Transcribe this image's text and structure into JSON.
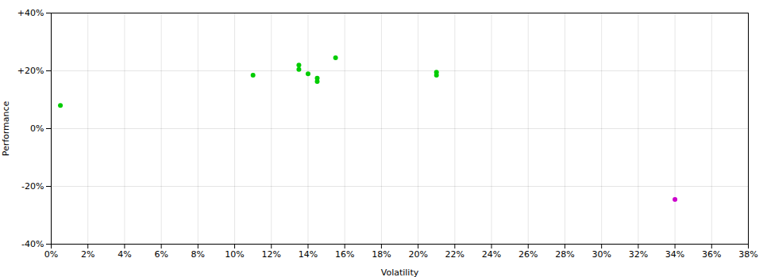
{
  "chart_data": {
    "type": "scatter",
    "xlabel": "Volatility",
    "ylabel": "Performance",
    "series": [
      {
        "color": "#00cc00",
        "x": [
          0.005,
          0.11,
          0.135,
          0.135,
          0.14,
          0.145,
          0.145,
          0.155,
          0.21,
          0.21
        ],
        "y": [
          0.08,
          0.185,
          0.22,
          0.205,
          0.19,
          0.175,
          0.163,
          0.245,
          0.195,
          0.185
        ]
      },
      {
        "color": "#cc00cc",
        "x": [
          0.34
        ],
        "y": [
          -0.245
        ]
      }
    ],
    "xlim": [
      0,
      0.38
    ],
    "ylim": [
      -0.4,
      0.4
    ],
    "xticks": [
      {
        "value": 0,
        "label": "0%"
      },
      {
        "value": 0.02,
        "label": "2%"
      },
      {
        "value": 0.04,
        "label": "4%"
      },
      {
        "value": 0.06,
        "label": "6%"
      },
      {
        "value": 0.08,
        "label": "8%"
      },
      {
        "value": 0.1,
        "label": "10%"
      },
      {
        "value": 0.12,
        "label": "12%"
      },
      {
        "value": 0.14,
        "label": "14%"
      },
      {
        "value": 0.16,
        "label": "16%"
      },
      {
        "value": 0.18,
        "label": "18%"
      },
      {
        "value": 0.2,
        "label": "20%"
      },
      {
        "value": 0.22,
        "label": "22%"
      },
      {
        "value": 0.24,
        "label": "24%"
      },
      {
        "value": 0.26,
        "label": "26%"
      },
      {
        "value": 0.28,
        "label": "28%"
      },
      {
        "value": 0.3,
        "label": "30%"
      },
      {
        "value": 0.32,
        "label": "32%"
      },
      {
        "value": 0.34,
        "label": "34%"
      },
      {
        "value": 0.36,
        "label": "36%"
      },
      {
        "value": 0.38,
        "label": "38%"
      }
    ],
    "yticks": [
      {
        "value": -0.4,
        "label": "-40%"
      },
      {
        "value": -0.2,
        "label": "-20%"
      },
      {
        "value": 0.0,
        "label": "0%"
      },
      {
        "value": 0.2,
        "label": "+20%"
      },
      {
        "value": 0.4,
        "label": "+40%"
      }
    ],
    "grid": true
  }
}
